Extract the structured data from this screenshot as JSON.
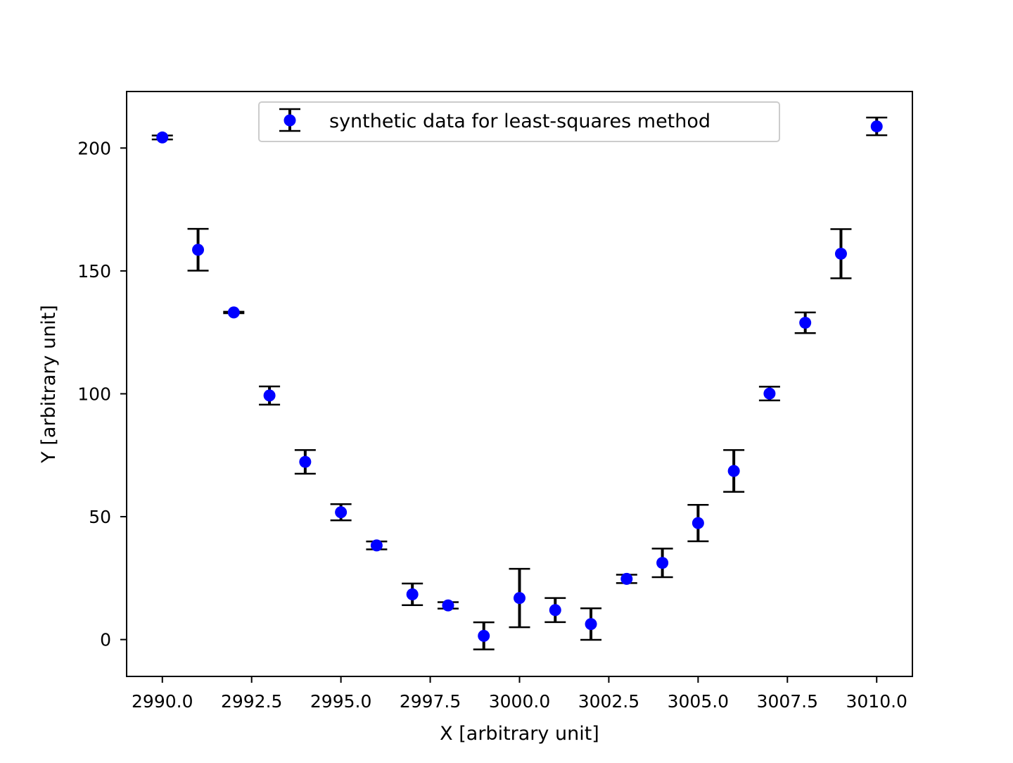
{
  "chart_data": {
    "type": "scatter",
    "title": "",
    "xlabel": "X [arbitrary unit]",
    "ylabel": "Y [arbitrary unit]",
    "xlim": [
      2989.0,
      3011.0
    ],
    "ylim": [
      -15,
      223
    ],
    "xticks": [
      2990.0,
      2992.5,
      2995.0,
      2997.5,
      3000.0,
      3002.5,
      3005.0,
      3007.5,
      3010.0
    ],
    "xtick_labels": [
      "2990.0",
      "2992.5",
      "2995.0",
      "2997.5",
      "3000.0",
      "3002.5",
      "3005.0",
      "3007.5",
      "3010.0"
    ],
    "yticks": [
      0,
      50,
      100,
      150,
      200
    ],
    "ytick_labels": [
      "0",
      "50",
      "100",
      "150",
      "200"
    ],
    "grid": false,
    "legend_position": "top-center",
    "series": [
      {
        "name": "synthetic data for least-squares method",
        "marker_color": "#0000ff",
        "errorbar_color": "#000000",
        "x": [
          2990,
          2991,
          2992,
          2993,
          2994,
          2995,
          2996,
          2997,
          2998,
          2999,
          3000,
          3001,
          3002,
          3003,
          3004,
          3005,
          3006,
          3007,
          3008,
          3009,
          3010
        ],
        "y": [
          204.3,
          158.6,
          133.1,
          99.3,
          72.3,
          51.8,
          38.3,
          18.4,
          13.9,
          1.5,
          16.9,
          12.0,
          6.3,
          24.7,
          31.2,
          47.4,
          68.6,
          100.1,
          128.9,
          157.0,
          208.8
        ],
        "yerr": [
          0.8,
          8.5,
          0.3,
          3.7,
          4.8,
          3.3,
          1.6,
          4.4,
          1.3,
          5.5,
          11.9,
          4.9,
          6.4,
          1.7,
          5.8,
          7.4,
          8.5,
          2.8,
          4.2,
          10.0,
          3.6
        ]
      }
    ]
  }
}
